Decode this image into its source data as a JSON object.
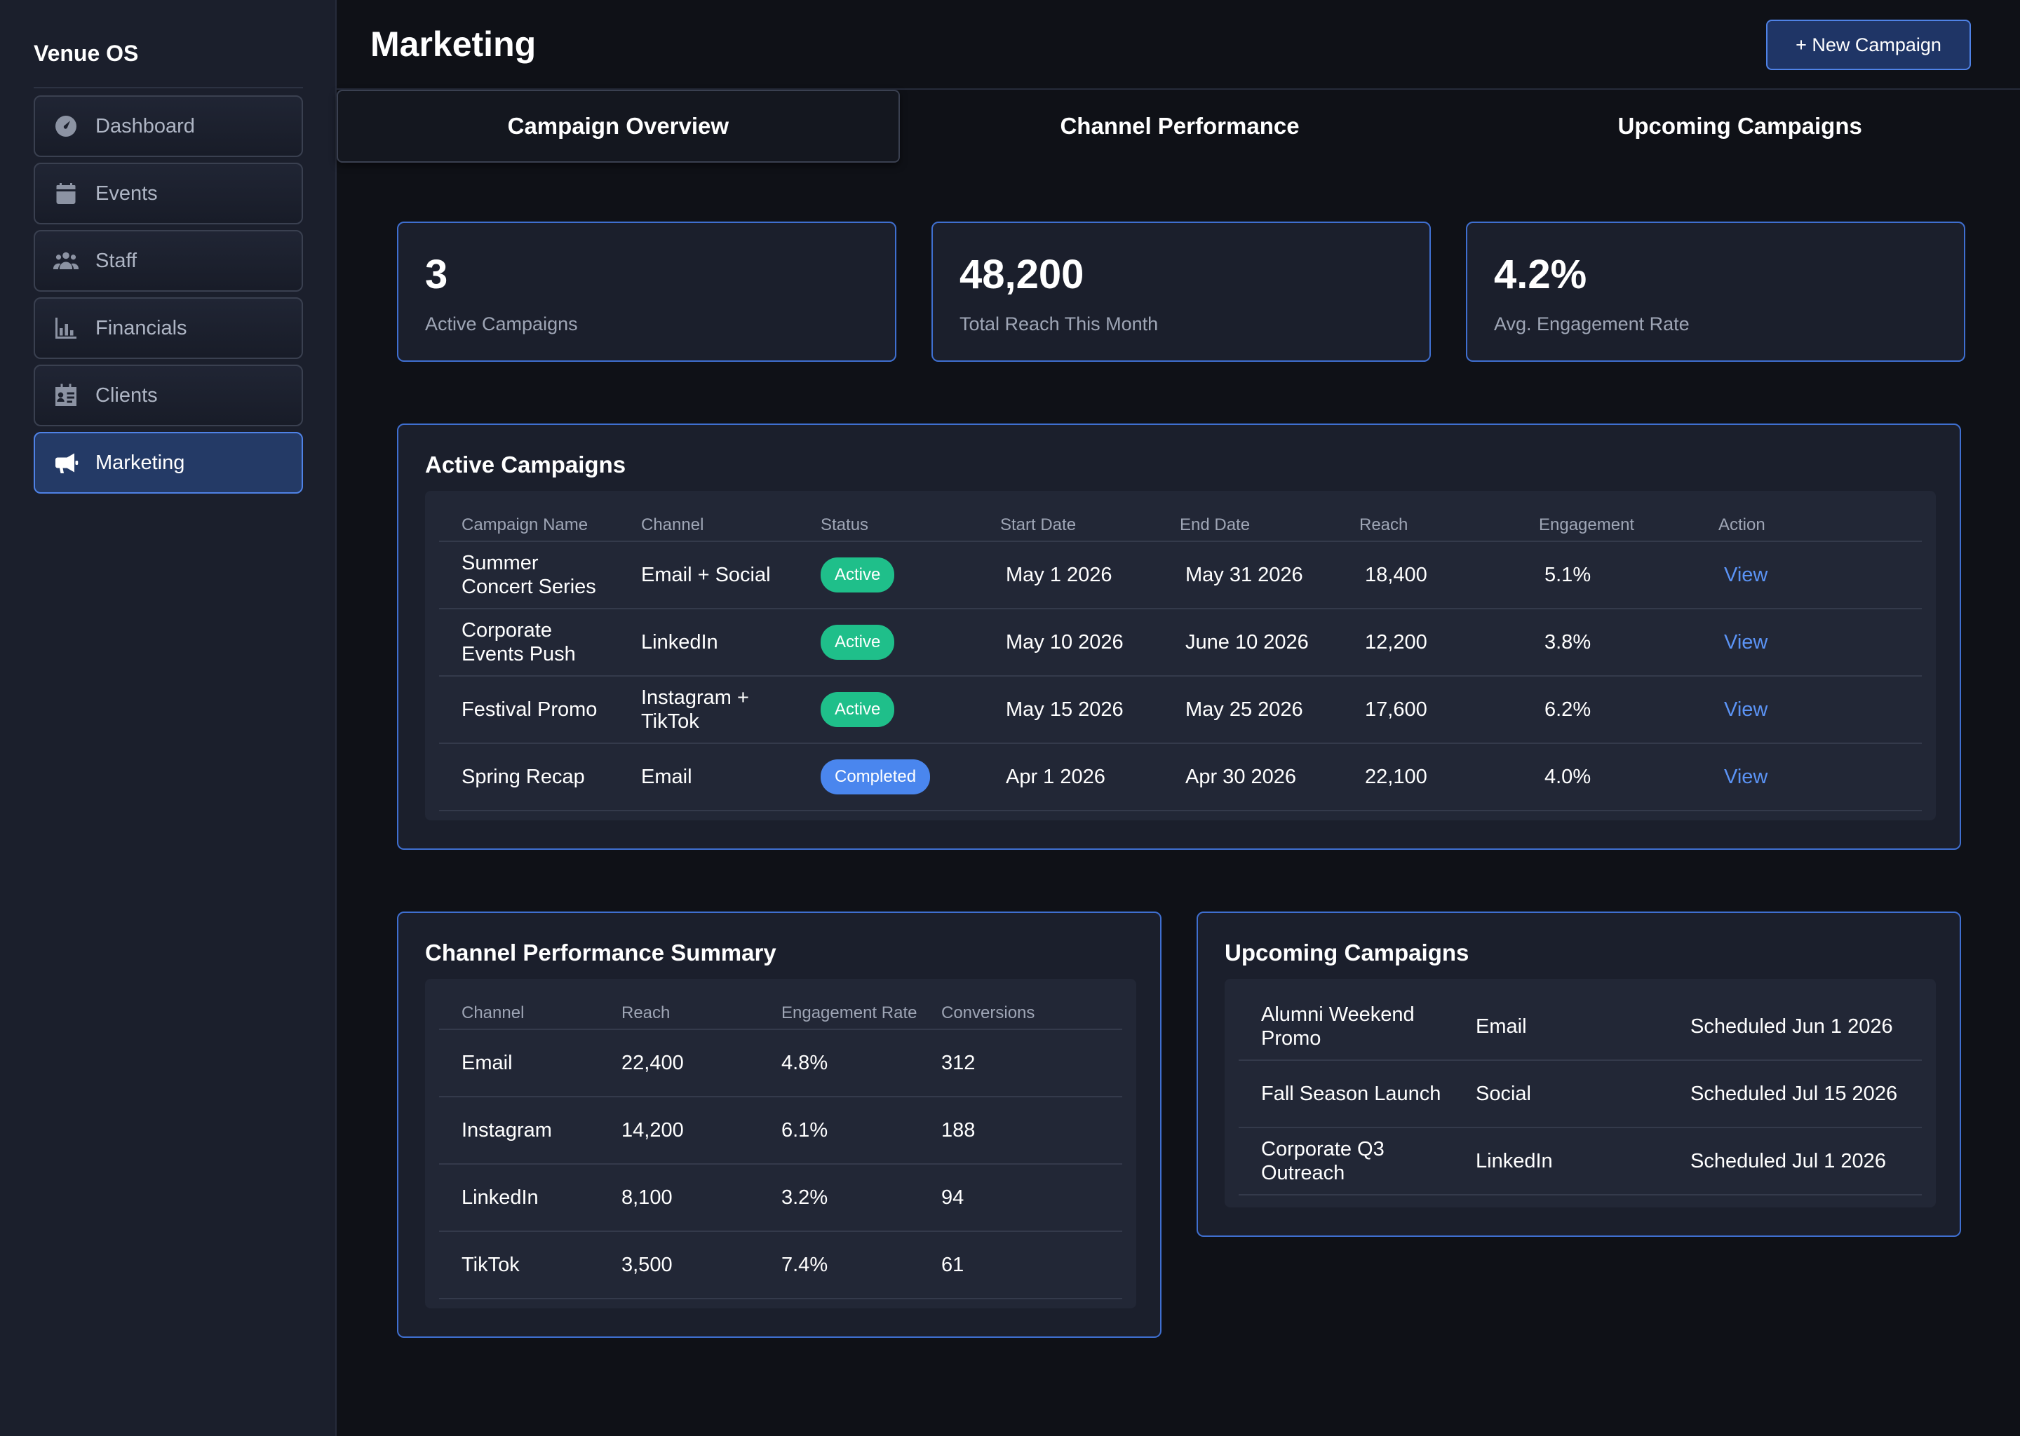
{
  "app": {
    "brand": "Venue OS"
  },
  "sidebar": {
    "items": [
      {
        "label": "Dashboard",
        "icon": "dashboard-gauge-icon"
      },
      {
        "label": "Events",
        "icon": "calendar-icon"
      },
      {
        "label": "Staff",
        "icon": "users-icon"
      },
      {
        "label": "Financials",
        "icon": "bar-chart-icon"
      },
      {
        "label": "Clients",
        "icon": "id-card-icon"
      },
      {
        "label": "Marketing",
        "icon": "megaphone-icon",
        "active": true
      }
    ]
  },
  "header": {
    "title": "Marketing",
    "new_campaign_label": "+ New Campaign"
  },
  "tabs": [
    {
      "label": "Campaign Overview",
      "active": true
    },
    {
      "label": "Channel Performance"
    },
    {
      "label": "Upcoming Campaigns"
    }
  ],
  "stats": [
    {
      "value": "3",
      "label": "Active Campaigns"
    },
    {
      "value": "48,200",
      "label": "Total Reach This Month"
    },
    {
      "value": "4.2%",
      "label": "Avg. Engagement Rate"
    }
  ],
  "active_campaigns": {
    "title": "Active Campaigns",
    "columns": [
      "Campaign Name",
      "Channel",
      "Status",
      "Start Date",
      "End Date",
      "Reach",
      "Engagement",
      "Action"
    ],
    "rows": [
      {
        "name": "Summer Concert Series",
        "channel": "Email + Social",
        "status": "Active",
        "start": "May 1 2026",
        "end": "May 31 2026",
        "reach": "18,400",
        "engagement": "5.1%",
        "action": "View"
      },
      {
        "name": "Corporate Events Push",
        "channel": "LinkedIn",
        "status": "Active",
        "start": "May 10 2026",
        "end": "June 10 2026",
        "reach": "12,200",
        "engagement": "3.8%",
        "action": "View"
      },
      {
        "name": "Festival Promo",
        "channel": "Instagram + TikTok",
        "status": "Active",
        "start": "May 15 2026",
        "end": "May 25 2026",
        "reach": "17,600",
        "engagement": "6.2%",
        "action": "View"
      },
      {
        "name": "Spring Recap",
        "channel": "Email",
        "status": "Completed",
        "start": "Apr 1 2026",
        "end": "Apr 30 2026",
        "reach": "22,100",
        "engagement": "4.0%",
        "action": "View"
      }
    ]
  },
  "channel_summary": {
    "title": "Channel Performance Summary",
    "columns": [
      "Channel",
      "Reach",
      "Engagement Rate",
      "Conversions"
    ],
    "rows": [
      {
        "channel": "Email",
        "reach": "22,400",
        "rate": "4.8%",
        "conversions": "312"
      },
      {
        "channel": "Instagram",
        "reach": "14,200",
        "rate": "6.1%",
        "conversions": "188"
      },
      {
        "channel": "LinkedIn",
        "reach": "8,100",
        "rate": "3.2%",
        "conversions": "94"
      },
      {
        "channel": "TikTok",
        "reach": "3,500",
        "rate": "7.4%",
        "conversions": "61"
      }
    ]
  },
  "upcoming": {
    "title": "Upcoming Campaigns",
    "rows": [
      {
        "name": "Alumni Weekend Promo",
        "channel": "Email",
        "scheduled": "Scheduled Jun 1 2026"
      },
      {
        "name": "Fall Season Launch",
        "channel": "Social",
        "scheduled": "Scheduled Jul 15 2026"
      },
      {
        "name": "Corporate Q3 Outreach",
        "channel": "LinkedIn",
        "scheduled": "Scheduled Jul 1 2026"
      }
    ]
  },
  "colors": {
    "accent": "#4f82e6",
    "active_badge": "#1fbf8a",
    "completed_badge": "#4a86ee",
    "link": "#5b93f5"
  }
}
